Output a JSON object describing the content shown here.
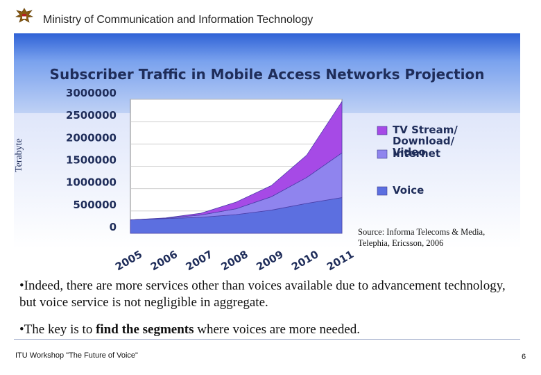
{
  "header": {
    "ministry": "Ministry of Communication and Information Technology"
  },
  "chart_data": {
    "type": "area",
    "title": "Subscriber Traffic in Mobile Access Networks Projection",
    "ylabel": "Terabyte",
    "xlabel": "",
    "categories": [
      "2005",
      "2006",
      "2007",
      "2008",
      "2009",
      "2010",
      "2011"
    ],
    "y_ticks": [
      "0",
      "500000",
      "1000000",
      "1500000",
      "2000000",
      "2500000",
      "3000000"
    ],
    "ylim": [
      0,
      3000000
    ],
    "stacked": true,
    "series": [
      {
        "name": "Voice",
        "values": [
          300000,
          330000,
          360000,
          420000,
          520000,
          670000,
          800000
        ],
        "color": "#5c6fe0"
      },
      {
        "name": "Internet",
        "values": [
          0,
          10000,
          50000,
          130000,
          300000,
          580000,
          1000000
        ],
        "color": "#8f84ee"
      },
      {
        "name": "TV Stream/ Download/ Video",
        "values": [
          0,
          5000,
          40000,
          150000,
          250000,
          500000,
          1150000
        ],
        "color": "#a64ae6"
      }
    ],
    "legend": [
      "TV Stream/ Download/ Video",
      "Internet",
      "Voice"
    ],
    "legend_position": "right"
  },
  "source": "Source: Informa Telecoms & Media, Telephia, Ericsson, 2006",
  "bullets": {
    "b1": "•Indeed, there are more services other than voices available due to advancement technology, but voice service is not negligible in aggregate.",
    "b2_pre": "•The key is to ",
    "b2_bold": "find the segments",
    "b2_post": " where  voices are more needed."
  },
  "footer": {
    "left": "ITU Workshop \"The Future of Voice\"",
    "page": "6"
  }
}
